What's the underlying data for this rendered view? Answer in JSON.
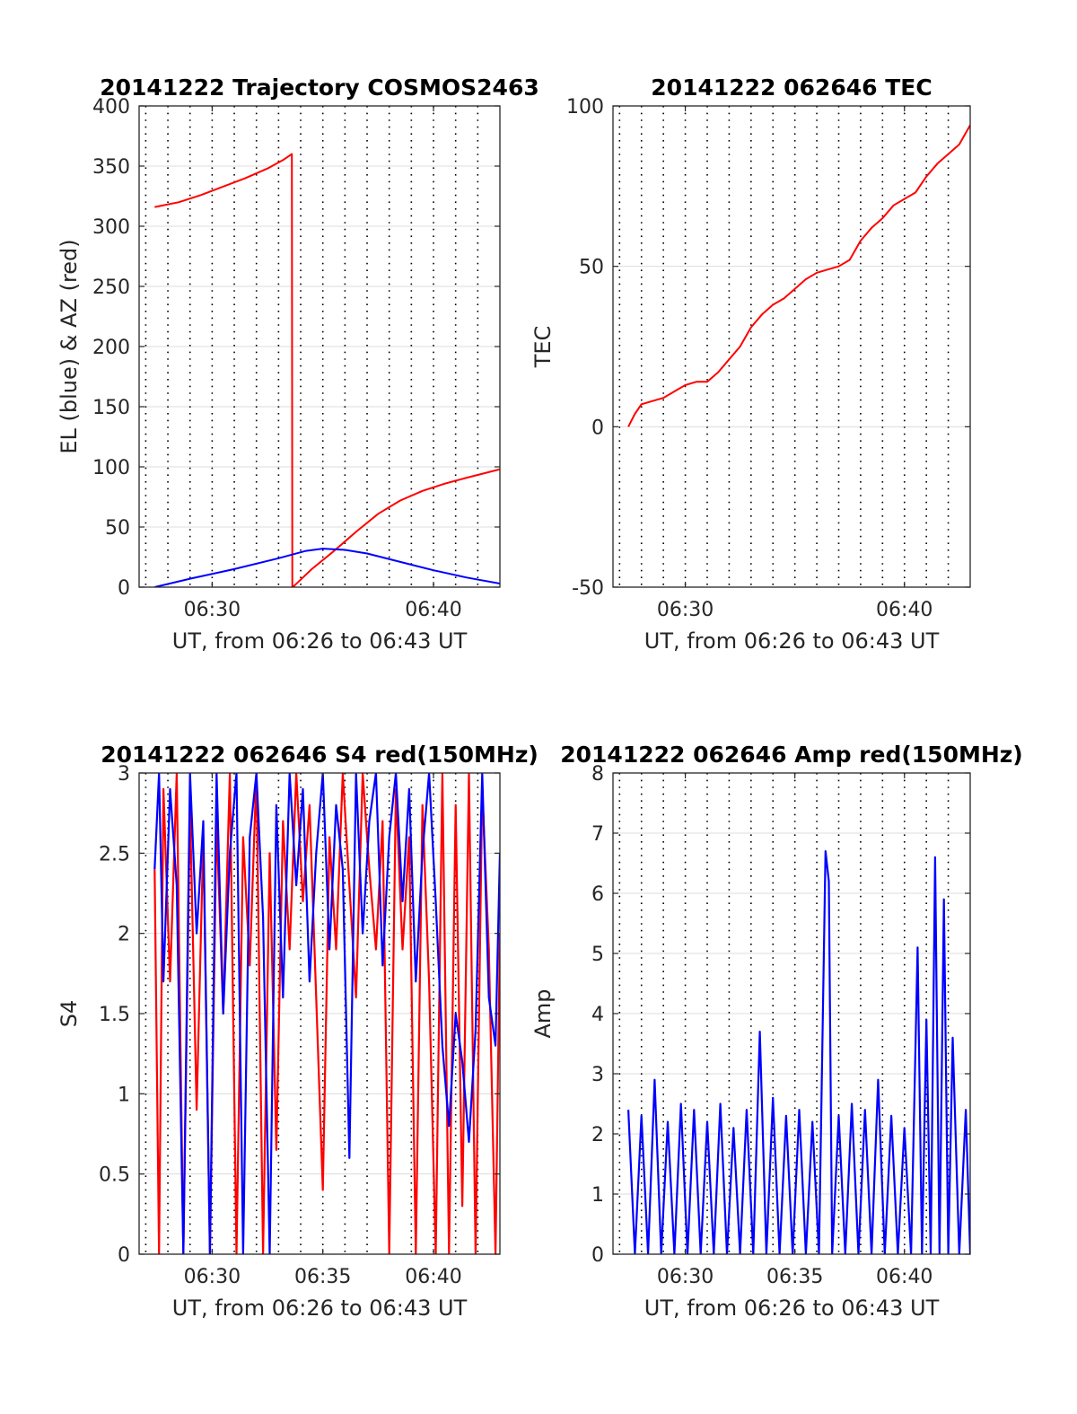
{
  "chart_data": [
    {
      "type": "line",
      "title": "20141222 Trajectory COSMOS2463",
      "xlabel": "UT, from 06:26 to 06:43 UT",
      "ylabel": "EL (blue) & AZ (red)",
      "xlim": [
        26.7,
        43.0
      ],
      "ylim": [
        0,
        400
      ],
      "yticks": [
        0,
        50,
        100,
        150,
        200,
        250,
        300,
        350,
        400
      ],
      "xticks": [
        {
          "value": 30,
          "label": "06:30"
        },
        {
          "value": 40,
          "label": "06:40"
        }
      ],
      "grid": true,
      "series": [
        {
          "color": "#ff0000",
          "x": [
            27.4,
            28.5,
            29.5,
            30.5,
            31.5,
            32.5,
            33.2,
            33.6,
            33.62,
            33.7,
            34.5,
            35.5,
            36.5,
            37.5,
            38.5,
            39.5,
            40.5,
            41.5,
            43.0
          ],
          "y": [
            316,
            320,
            326,
            333,
            340,
            348,
            355,
            360,
            0,
            1,
            15,
            30,
            46,
            61,
            72,
            80,
            86,
            91,
            98
          ]
        },
        {
          "color": "#0000ff",
          "x": [
            27.4,
            29.0,
            31.0,
            33.0,
            34.2,
            35.0,
            36.0,
            37.0,
            38.5,
            40.0,
            41.5,
            43.0
          ],
          "y": [
            0,
            7,
            15,
            24,
            30,
            32,
            31,
            28,
            21,
            14,
            8,
            3
          ]
        }
      ]
    },
    {
      "type": "line",
      "title": "20141222 062646 TEC",
      "xlabel": "UT, from 06:26 to 06:43 UT",
      "ylabel": "TEC",
      "xlim": [
        26.7,
        43.0
      ],
      "ylim": [
        -50,
        100
      ],
      "yticks": [
        -50,
        0,
        50,
        100
      ],
      "xticks": [
        {
          "value": 30,
          "label": "06:30"
        },
        {
          "value": 40,
          "label": "06:40"
        }
      ],
      "grid": true,
      "series": [
        {
          "color": "#ff0000",
          "x": [
            27.4,
            27.7,
            28.0,
            28.5,
            29.0,
            29.5,
            30.0,
            30.5,
            31.0,
            31.5,
            32.0,
            32.5,
            33.0,
            33.5,
            34.0,
            34.5,
            35.0,
            35.5,
            36.0,
            36.5,
            37.0,
            37.5,
            38.0,
            38.5,
            39.0,
            39.5,
            40.0,
            40.5,
            41.0,
            41.5,
            42.0,
            42.5,
            43.0
          ],
          "y": [
            0,
            4,
            7,
            8,
            9,
            11,
            13,
            14,
            14,
            17,
            21,
            25,
            31,
            35,
            38,
            40,
            43,
            46,
            48,
            49,
            50,
            52,
            58,
            62,
            65,
            69,
            71,
            73,
            78,
            82,
            85,
            88,
            94
          ]
        }
      ]
    },
    {
      "type": "line",
      "title": "20141222 062646 S4 red(150MHz)",
      "xlabel": "UT, from 06:26 to 06:43 UT",
      "ylabel": "S4",
      "xlim": [
        26.7,
        43.0
      ],
      "ylim": [
        0,
        3
      ],
      "yticks": [
        0,
        0.5,
        1,
        1.5,
        2,
        2.5,
        3
      ],
      "xticks": [
        {
          "value": 30,
          "label": "06:30"
        },
        {
          "value": 35,
          "label": "06:35"
        },
        {
          "value": 40,
          "label": "06:40"
        }
      ],
      "grid": true,
      "series": [
        {
          "color": "#ff0000",
          "x": [
            27.4,
            27.6,
            27.8,
            28.1,
            28.4,
            28.7,
            29.0,
            29.3,
            29.6,
            29.9,
            30.2,
            30.5,
            30.8,
            31.1,
            31.4,
            31.7,
            32.0,
            32.3,
            32.6,
            32.9,
            33.2,
            33.5,
            33.8,
            34.1,
            34.4,
            34.7,
            35.0,
            35.3,
            35.6,
            35.9,
            36.2,
            36.5,
            36.8,
            37.1,
            37.4,
            37.7,
            38.0,
            38.3,
            38.6,
            38.9,
            39.2,
            39.5,
            39.8,
            40.1,
            40.4,
            40.7,
            41.0,
            41.3,
            41.6,
            41.9,
            42.2,
            42.5,
            42.8,
            43.0
          ],
          "y": [
            2.4,
            0,
            2.9,
            1.7,
            3,
            0,
            2.8,
            0.9,
            2.6,
            0,
            2.7,
            1.5,
            3,
            0,
            2.6,
            1.8,
            3,
            0,
            2.5,
            0.65,
            2.7,
            1.9,
            3,
            2.2,
            2.8,
            1.6,
            0.4,
            2.6,
            1.9,
            3,
            2.3,
            1.6,
            3,
            2.4,
            1.9,
            2.7,
            0,
            2.9,
            1.9,
            2.6,
            0,
            2.8,
            1.7,
            0,
            3,
            0,
            2.8,
            0.3,
            3,
            0,
            2.9,
            1.9,
            0,
            2.0
          ]
        },
        {
          "color": "#0000ff",
          "x": [
            27.4,
            27.6,
            27.8,
            28.1,
            28.4,
            28.7,
            29.0,
            29.3,
            29.6,
            29.9,
            30.2,
            30.5,
            30.8,
            31.1,
            31.4,
            31.7,
            32.0,
            32.3,
            32.6,
            32.9,
            33.2,
            33.5,
            33.8,
            34.1,
            34.4,
            34.7,
            35.0,
            35.3,
            35.6,
            35.9,
            36.2,
            36.5,
            36.8,
            37.1,
            37.4,
            37.7,
            38.0,
            38.3,
            38.6,
            38.9,
            39.2,
            39.5,
            39.8,
            40.1,
            40.4,
            40.7,
            41.0,
            41.3,
            41.6,
            41.9,
            42.2,
            42.5,
            42.8,
            43.0
          ],
          "y": [
            2.4,
            3,
            1.7,
            2.9,
            2.3,
            0,
            3,
            2.0,
            2.7,
            0,
            3,
            1.5,
            2.5,
            3,
            0,
            2.6,
            3,
            2.1,
            0,
            2.8,
            1.6,
            3,
            2.3,
            2.9,
            1.7,
            2.5,
            3,
            1.9,
            2.8,
            2.4,
            0.6,
            3,
            2.0,
            2.7,
            3,
            1.8,
            2.6,
            3,
            2.2,
            2.9,
            1.7,
            2.5,
            3,
            2.2,
            1.3,
            0.8,
            1.5,
            1.2,
            0.7,
            1.4,
            3,
            1.6,
            1.3,
            2.5
          ]
        }
      ]
    },
    {
      "type": "line",
      "title": "20141222 062646 Amp red(150MHz)",
      "xlabel": "UT, from 06:26 to 06:43 UT",
      "ylabel": "Amp",
      "xlim": [
        26.7,
        43.0
      ],
      "ylim": [
        0,
        8
      ],
      "yticks": [
        0,
        1,
        2,
        3,
        4,
        5,
        6,
        7,
        8
      ],
      "xticks": [
        {
          "value": 30,
          "label": "06:30"
        },
        {
          "value": 35,
          "label": "06:35"
        },
        {
          "value": 40,
          "label": "06:40"
        }
      ],
      "grid": true,
      "series": [
        {
          "color": "#0000ff",
          "x": [
            27.4,
            27.7,
            28.0,
            28.3,
            28.6,
            28.9,
            29.2,
            29.5,
            29.8,
            30.1,
            30.4,
            30.7,
            31.0,
            31.3,
            31.6,
            31.9,
            32.2,
            32.5,
            32.8,
            33.1,
            33.4,
            33.7,
            34.0,
            34.3,
            34.6,
            34.9,
            35.2,
            35.5,
            35.8,
            36.1,
            36.4,
            36.55,
            36.7,
            37.0,
            37.3,
            37.6,
            37.9,
            38.2,
            38.5,
            38.8,
            39.1,
            39.4,
            39.7,
            40.0,
            40.3,
            40.6,
            40.8,
            41.0,
            41.2,
            41.4,
            41.6,
            41.8,
            42.0,
            42.2,
            42.5,
            42.8,
            43.0
          ],
          "y": [
            2.4,
            0,
            2.3,
            0,
            2.9,
            0,
            2.2,
            0,
            2.5,
            0,
            2.4,
            0,
            2.2,
            0,
            2.5,
            0,
            2.1,
            0,
            2.4,
            0,
            3.7,
            0,
            2.6,
            0,
            2.3,
            0,
            2.4,
            0,
            2.2,
            0,
            6.7,
            6.2,
            0,
            2.3,
            0,
            2.5,
            0,
            2.4,
            0,
            2.9,
            0,
            2.3,
            0,
            2.1,
            0,
            5.1,
            0,
            3.9,
            0,
            6.6,
            0,
            5.9,
            0,
            3.6,
            0,
            2.4,
            0
          ]
        }
      ]
    }
  ]
}
